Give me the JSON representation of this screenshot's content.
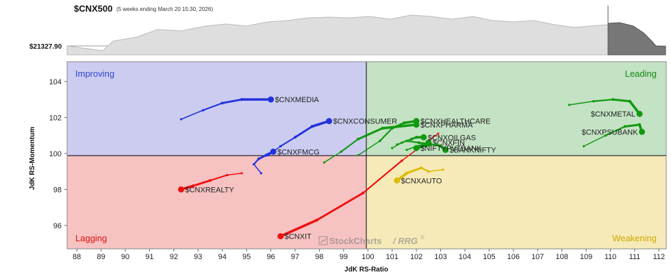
{
  "header": {
    "symbol": "$CNX500",
    "subtitle": "(5 weeks ending March 20 15:30, 2026)",
    "price_label": "$21327.90"
  },
  "quadrants": {
    "improving": "Improving",
    "leading": "Leading",
    "lagging": "Lagging",
    "weakening": "Weakening"
  },
  "watermark": {
    "brand": "StockCharts",
    "product": "/ RRG",
    "mark": "®"
  },
  "colors": {
    "improving_bg": "#ccccf0",
    "leading_bg": "#c4e2c4",
    "lagging_bg": "#f6c2c2",
    "weakening_bg": "#f6eab8",
    "improving_text": "#3344cc",
    "leading_text": "#118811",
    "lagging_text": "#dd1111",
    "weakening_text": "#ccaa00",
    "price_fill": "#dedede",
    "price_fill_highlight": "#777777"
  },
  "chart_data": {
    "type": "scatter",
    "xlabel": "JdK RS-Ratio",
    "ylabel": "JdK RS-Momentum",
    "xlim": [
      87.6,
      112.3
    ],
    "ylim": [
      94.7,
      105.1
    ],
    "xticks": [
      88,
      89,
      90,
      91,
      92,
      93,
      94,
      95,
      96,
      97,
      98,
      99,
      100,
      101,
      102,
      103,
      104,
      105,
      106,
      107,
      108,
      109,
      110,
      111,
      112
    ],
    "yticks": [
      96,
      98,
      100,
      102,
      104
    ],
    "center": [
      100,
      100
    ],
    "series": [
      {
        "name": "$CNXMEDIA",
        "color": "#2233dd",
        "points": [
          [
            92.3,
            101.9
          ],
          [
            93.2,
            102.4
          ],
          [
            94.0,
            102.8
          ],
          [
            94.8,
            103.0
          ],
          [
            96.0,
            103.0
          ]
        ]
      },
      {
        "name": "$CNXCONSUMER",
        "color": "#2233dd",
        "points": [
          [
            95.9,
            99.9
          ],
          [
            96.4,
            100.4
          ],
          [
            97.0,
            100.9
          ],
          [
            97.7,
            101.5
          ],
          [
            98.4,
            101.8
          ]
        ]
      },
      {
        "name": "$CNXFMCG",
        "color": "#2233dd",
        "points": [
          [
            95.6,
            98.9
          ],
          [
            95.3,
            99.4
          ],
          [
            95.5,
            99.7
          ],
          [
            95.8,
            99.9
          ],
          [
            96.1,
            100.1
          ]
        ]
      },
      {
        "name": "$CNXREALTY",
        "color": "#ee1111",
        "points": [
          [
            94.8,
            98.9
          ],
          [
            94.2,
            98.8
          ],
          [
            93.5,
            98.5
          ],
          [
            92.8,
            98.2
          ],
          [
            92.3,
            98.0
          ]
        ]
      },
      {
        "name": "$CNXIT",
        "color": "#ee1111",
        "points": [
          [
            102.9,
            101.1
          ],
          [
            101.4,
            99.6
          ],
          [
            99.8,
            97.8
          ],
          [
            97.9,
            96.3
          ],
          [
            96.4,
            95.4
          ]
        ]
      },
      {
        "name": "$CNXHEALTHCARE",
        "color": "#119911",
        "points": [
          [
            99.6,
            99.9
          ],
          [
            100.5,
            100.7
          ],
          [
            101.0,
            101.4
          ],
          [
            101.5,
            101.7
          ],
          [
            102.0,
            101.8
          ]
        ]
      },
      {
        "name": "$CNXPHARMA",
        "color": "#119911",
        "points": [
          [
            98.2,
            99.5
          ],
          [
            98.9,
            100.1
          ],
          [
            99.6,
            100.8
          ],
          [
            100.6,
            101.4
          ],
          [
            102.0,
            101.6
          ]
        ]
      },
      {
        "name": "$CNXFIN",
        "color": "#119911",
        "points": [
          [
            101.2,
            100.5
          ],
          [
            101.6,
            100.7
          ],
          [
            102.1,
            100.6
          ],
          [
            102.6,
            100.5
          ],
          [
            102.5,
            100.6
          ]
        ]
      },
      {
        "name": "$CNXOILGAS",
        "color": "#119911",
        "points": [
          [
            101.0,
            100.3
          ],
          [
            101.4,
            100.6
          ],
          [
            101.8,
            100.8
          ],
          [
            102.0,
            100.9
          ],
          [
            102.3,
            100.9
          ]
        ]
      },
      {
        "name": "$BANKNIFTY",
        "color": "#119911",
        "points": [
          [
            102.0,
            100.4
          ],
          [
            102.4,
            100.5
          ],
          [
            102.8,
            100.5
          ],
          [
            103.0,
            100.4
          ],
          [
            103.2,
            100.2
          ]
        ]
      },
      {
        "name": "$NIFTYPVTBANK",
        "color": "#119911",
        "points": [
          [
            101.6,
            100.2
          ],
          [
            102.0,
            100.4
          ],
          [
            102.3,
            100.5
          ],
          [
            102.6,
            100.5
          ],
          [
            102.0,
            100.3
          ]
        ]
      },
      {
        "name": "$CNXAUTO",
        "color": "#ddbb00",
        "points": [
          [
            103.1,
            99.1
          ],
          [
            102.5,
            99.0
          ],
          [
            102.2,
            99.2
          ],
          [
            101.6,
            98.9
          ],
          [
            101.2,
            98.5
          ]
        ]
      },
      {
        "name": "$CNXMETAL",
        "color": "#119911",
        "points": [
          [
            108.3,
            102.7
          ],
          [
            109.3,
            102.9
          ],
          [
            110.1,
            103.0
          ],
          [
            110.8,
            102.9
          ],
          [
            111.2,
            102.2
          ]
        ]
      },
      {
        "name": "$CNXPSUBANK",
        "color": "#119911",
        "points": [
          [
            108.9,
            100.4
          ],
          [
            109.8,
            101.0
          ],
          [
            110.6,
            101.5
          ],
          [
            111.2,
            101.6
          ],
          [
            111.3,
            101.2
          ]
        ]
      }
    ]
  }
}
